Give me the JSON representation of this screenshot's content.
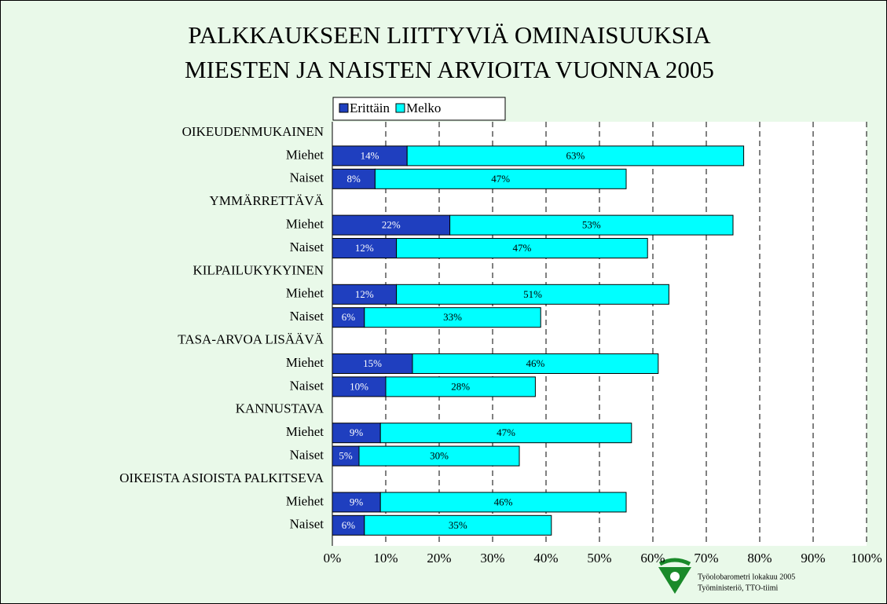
{
  "chart_data": {
    "type": "stacked-bar-horizontal",
    "title": [
      "PALKKAUKSEEN LIITTYVIÄ OMINAISUUKSIA",
      "MIESTEN JA NAISTEN ARVIOITA VUONNA 2005"
    ],
    "categories": [
      "OIKEUDENMUKAINEN",
      "Miehet",
      "Naiset",
      "YMMÄRRETTÄVÄ",
      "Miehet",
      "Naiset",
      "KILPAILUKYKYINEN",
      "Miehet",
      "Naiset",
      "TASA-ARVOA LISÄÄVÄ",
      "Miehet",
      "Naiset",
      "KANNUSTAVA",
      "Miehet",
      "Naiset",
      "OIKEISTA ASIOISTA PALKITSEVA",
      "Miehet",
      "Naiset"
    ],
    "series": [
      {
        "name": "Erittäin",
        "color": "#1f3fbf",
        "values": [
          null,
          14,
          8,
          null,
          22,
          12,
          null,
          12,
          6,
          null,
          15,
          10,
          null,
          9,
          5,
          null,
          9,
          6
        ],
        "value_labels": [
          null,
          "14%",
          "8%",
          null,
          "22%",
          "12%",
          null,
          "12%",
          "6%",
          null,
          "15%",
          "10%",
          null,
          "9%",
          "5%",
          null,
          "9%",
          "6%"
        ]
      },
      {
        "name": "Melko",
        "color": "#00ffff",
        "values": [
          null,
          63,
          47,
          null,
          53,
          47,
          null,
          51,
          33,
          null,
          46,
          28,
          null,
          47,
          30,
          null,
          46,
          35
        ],
        "value_labels": [
          null,
          "63%",
          "47%",
          null,
          "53%",
          "47%",
          null,
          "51%",
          "33%",
          null,
          "46%",
          "28%",
          null,
          "47%",
          "30%",
          null,
          "46%",
          "35%"
        ]
      }
    ],
    "xlim": [
      0,
      100
    ],
    "xticks": [
      {
        "value": 0,
        "label": "0%"
      },
      {
        "value": 10,
        "label": "10%"
      },
      {
        "value": 20,
        "label": "20%"
      },
      {
        "value": 30,
        "label": "30%"
      },
      {
        "value": 40,
        "label": "40%"
      },
      {
        "value": 50,
        "label": "50%"
      },
      {
        "value": 60,
        "label": "60%"
      },
      {
        "value": 70,
        "label": "70%"
      },
      {
        "value": 80,
        "label": "80%"
      },
      {
        "value": 90,
        "label": "90%"
      },
      {
        "value": 100,
        "label": "100%"
      }
    ],
    "grid": true,
    "footer": [
      "Työolobarometri lokakuu 2005",
      "Työministeriö, TTO-tiimi"
    ]
  }
}
